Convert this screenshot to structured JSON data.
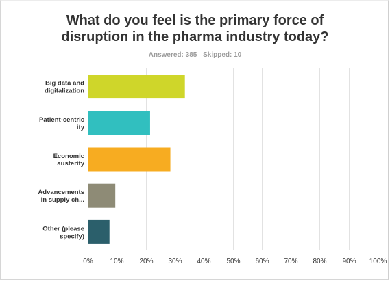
{
  "title_line1": "What do you feel is the primary force of",
  "title_line2": "disruption in the pharma industry today?",
  "answered_label": "Answered: 385",
  "skipped_label": "Skipped: 10",
  "chart_data": {
    "type": "bar",
    "orientation": "horizontal",
    "categories": [
      [
        "Big data and",
        "digitalization"
      ],
      [
        "Patient-centric",
        "ity"
      ],
      [
        "Economic",
        "austerity"
      ],
      [
        "Advancements",
        "in supply ch..."
      ],
      [
        "Other (please",
        "specify)"
      ]
    ],
    "values": [
      33.5,
      21.5,
      28.5,
      9.5,
      7.5
    ],
    "colors": [
      "#cfd62a",
      "#31bfbf",
      "#f7ac21",
      "#8e8b76",
      "#2b5f6b"
    ],
    "xlim": [
      0,
      100
    ],
    "xticks": [
      "0%",
      "10%",
      "20%",
      "30%",
      "40%",
      "50%",
      "60%",
      "70%",
      "80%",
      "90%",
      "100%"
    ],
    "grid": true
  }
}
